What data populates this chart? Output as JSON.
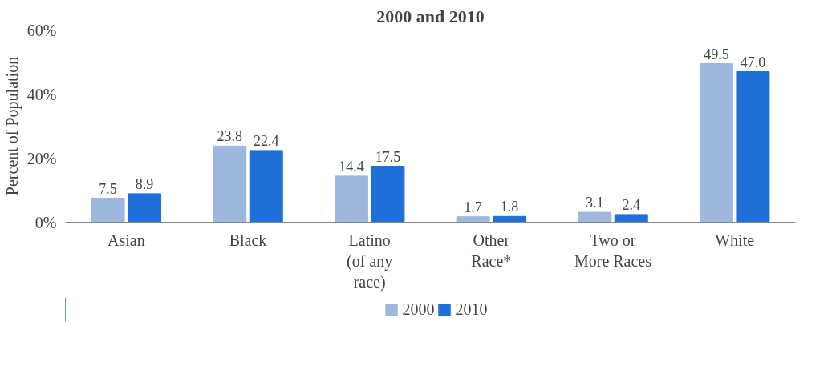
{
  "chart_data": {
    "type": "bar",
    "title": "2000 and 2010",
    "ylabel": "Percent of Population",
    "categories": [
      "Asian",
      "Black",
      "Latino\n(of any\nrace)",
      "Other\nRace*",
      "Two or\nMore Races",
      "White"
    ],
    "series": [
      {
        "name": "2000",
        "color": "#9db7de",
        "values": [
          7.5,
          23.8,
          14.4,
          1.7,
          3.1,
          49.5
        ],
        "value_labels": [
          "7.5",
          "23.8",
          "14.4",
          "1.7",
          "3.1",
          "49.5"
        ]
      },
      {
        "name": "2010",
        "color": "#1e6fd8",
        "values": [
          8.9,
          22.4,
          17.5,
          1.8,
          2.4,
          47.0
        ],
        "value_labels": [
          "8.9",
          "22.4",
          "17.5",
          "1.8",
          "2.4",
          "47.0"
        ]
      }
    ],
    "ylim": [
      0,
      60
    ],
    "yticks": [
      {
        "value": 0,
        "label": "0%"
      },
      {
        "value": 20,
        "label": "20%"
      },
      {
        "value": 40,
        "label": "40%"
      },
      {
        "value": 60,
        "label": "60%"
      }
    ],
    "grid": false,
    "legend": "bottom"
  }
}
